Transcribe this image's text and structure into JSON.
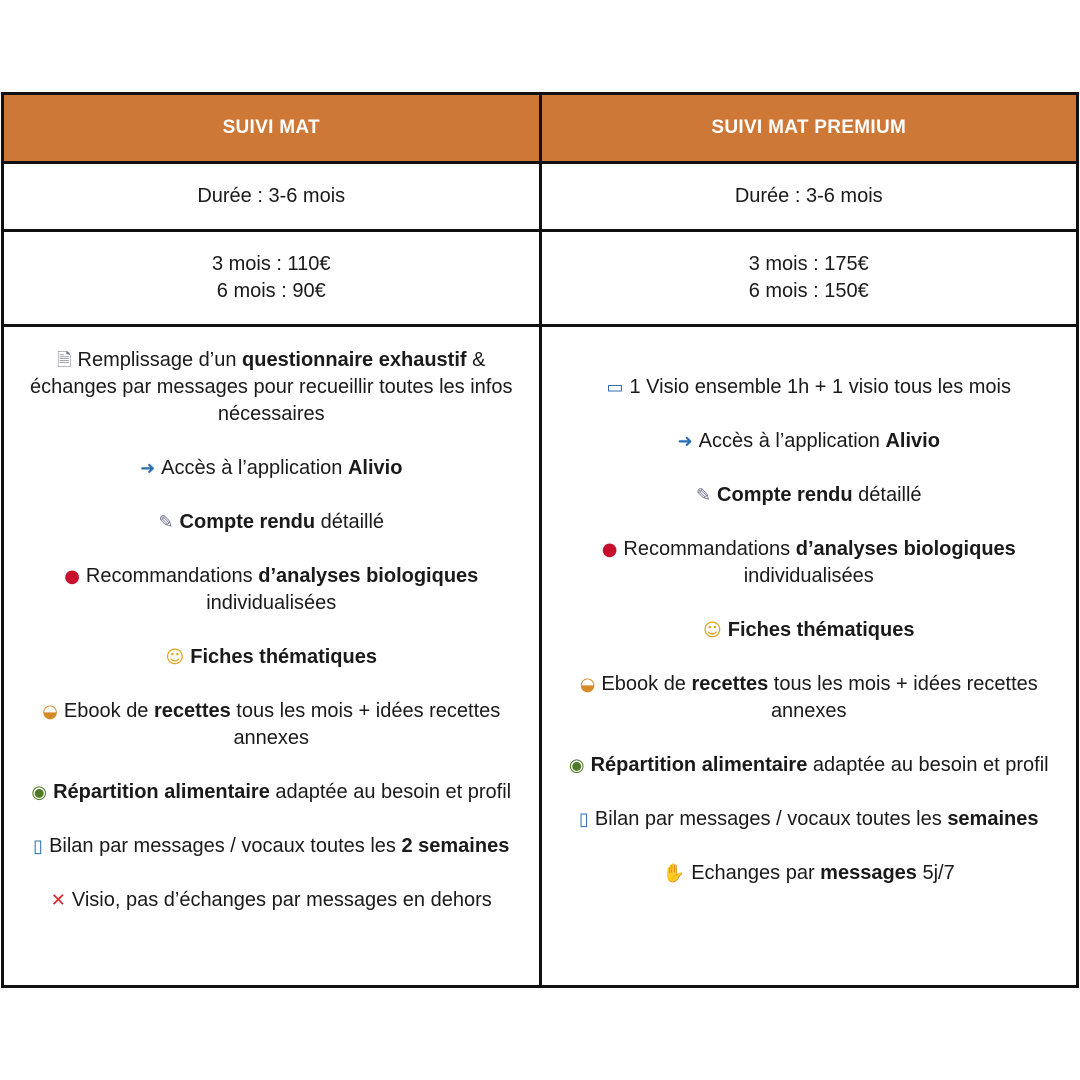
{
  "plans": [
    {
      "title": "SUIVI MAT",
      "duration": "Durée : 3-6 mois",
      "prices": [
        "3 mois : 110€",
        "6 mois : 90€"
      ],
      "features": [
        {
          "icon": "document-icon",
          "glyph": "🗎",
          "parts": [
            {
              "t": "Remplissage d’un "
            },
            {
              "t": "questionnaire exhaustif",
              "b": true
            },
            {
              "t": " & échanges par messages pour recueillir toutes les infos nécessaires"
            }
          ]
        },
        {
          "icon": "mobile-arrow-icon",
          "glyph": "➜",
          "parts": [
            {
              "t": "Accès à l’application "
            },
            {
              "t": "Alivio",
              "b": true
            }
          ]
        },
        {
          "icon": "memo-icon",
          "glyph": "✎",
          "parts": [
            {
              "t": "Compte rendu",
              "b": true
            },
            {
              "t": " détaillé"
            }
          ]
        },
        {
          "icon": "blood-drop-icon",
          "glyph": "●",
          "parts": [
            {
              "t": "Recommandations "
            },
            {
              "t": "d’analyses biologiques",
              "b": true
            },
            {
              "t": " individualisées"
            }
          ]
        },
        {
          "icon": "nerd-face-icon",
          "glyph": "☺",
          "parts": [
            {
              "t": "Fiches thématiques",
              "b": true
            }
          ]
        },
        {
          "icon": "pancakes-icon",
          "glyph": "◒",
          "parts": [
            {
              "t": "Ebook de "
            },
            {
              "t": "recettes",
              "b": true
            },
            {
              "t": " tous les mois + idées recettes annexes"
            }
          ]
        },
        {
          "icon": "avocado-icon",
          "glyph": "◉",
          "parts": [
            {
              "t": "Répartition alimentaire",
              "b": true
            },
            {
              "t": " adaptée au besoin et profil"
            }
          ]
        },
        {
          "icon": "mobile-phone-icon",
          "glyph": "▯",
          "parts": [
            {
              "t": "Bilan par messages / vocaux toutes les "
            },
            {
              "t": "2 semaines",
              "b": true
            }
          ]
        },
        {
          "icon": "cross-mark-icon",
          "glyph": "✕",
          "parts": [
            {
              "t": "Visio, pas d’échanges par messages en dehors"
            }
          ]
        }
      ]
    },
    {
      "title": "SUIVI MAT PREMIUM",
      "duration": "Durée : 3-6 mois",
      "prices": [
        "3 mois : 175€",
        "6 mois : 150€"
      ],
      "features": [
        {
          "icon": "laptop-icon",
          "glyph": "▭",
          "parts": [
            {
              "t": "1 Visio ensemble 1h + 1 visio tous les mois"
            }
          ]
        },
        {
          "icon": "mobile-arrow-icon",
          "glyph": "➜",
          "parts": [
            {
              "t": "Accès à l’application "
            },
            {
              "t": "Alivio",
              "b": true
            }
          ]
        },
        {
          "icon": "memo-icon",
          "glyph": "✎",
          "parts": [
            {
              "t": "Compte rendu",
              "b": true
            },
            {
              "t": " détaillé"
            }
          ]
        },
        {
          "icon": "blood-drop-icon",
          "glyph": "●",
          "parts": [
            {
              "t": "Recommandations "
            },
            {
              "t": "d’analyses biologiques",
              "b": true
            },
            {
              "t": " individualisées"
            }
          ]
        },
        {
          "icon": "nerd-face-icon",
          "glyph": "☺",
          "parts": [
            {
              "t": "Fiches thématiques",
              "b": true
            }
          ]
        },
        {
          "icon": "pancakes-icon",
          "glyph": "◒",
          "parts": [
            {
              "t": "Ebook de "
            },
            {
              "t": "recettes",
              "b": true
            },
            {
              "t": " tous les mois + idées recettes annexes"
            }
          ]
        },
        {
          "icon": "avocado-icon",
          "glyph": "◉",
          "parts": [
            {
              "t": "Répartition alimentaire",
              "b": true
            },
            {
              "t": " adaptée au besoin et profil"
            }
          ]
        },
        {
          "icon": "mobile-phone-icon",
          "glyph": "▯",
          "parts": [
            {
              "t": "Bilan par messages / vocaux toutes les  "
            },
            {
              "t": "semaines",
              "b": true
            }
          ]
        },
        {
          "icon": "raising-hands-icon",
          "glyph": "✋",
          "parts": [
            {
              "t": "Echanges par "
            },
            {
              "t": "messages",
              "b": true
            },
            {
              "t": " 5j/7"
            }
          ]
        }
      ]
    }
  ],
  "colors": {
    "header_bg": "#cd7837",
    "header_text": "#ffffff",
    "border": "#111111"
  }
}
